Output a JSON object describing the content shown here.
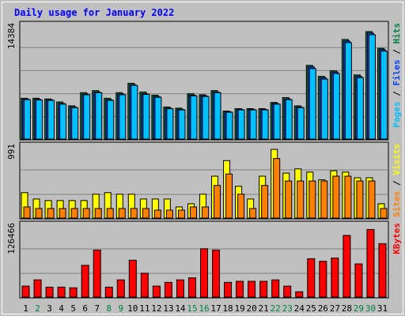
{
  "chart_data": {
    "type": "bar",
    "title": "Daily usage for January 2022",
    "categories": [
      "1",
      "2",
      "3",
      "4",
      "5",
      "6",
      "7",
      "8",
      "9",
      "10",
      "11",
      "12",
      "13",
      "14",
      "15",
      "16",
      "17",
      "18",
      "19",
      "20",
      "21",
      "22",
      "23",
      "24",
      "25",
      "26",
      "27",
      "28",
      "29",
      "30",
      "31"
    ],
    "weekend_days": [
      "2",
      "8",
      "9",
      "15",
      "16",
      "22",
      "23",
      "29",
      "30"
    ],
    "panels": [
      {
        "id": "hits-files-pages",
        "max_label": "14384",
        "ylim": [
          0,
          14384
        ],
        "grid": true,
        "series": [
          {
            "name": "Hits",
            "color": "#008040",
            "values": [
              5087,
              5087,
              5000,
              4626,
              4144,
              5782,
              6043,
              5087,
              5782,
              6955,
              5869,
              5478,
              3997,
              3853,
              5652,
              5522,
              6043,
              3491,
              3791,
              3791,
              3791,
              4563,
              5174,
              4144,
              9188,
              7824,
              8520,
              12418,
              8000,
              13403,
              11314
            ]
          },
          {
            "name": "Files",
            "color": "#0040ff",
            "values": [
              5000,
              4955,
              4913,
              4440,
              4000,
              5609,
              5869,
              4913,
              5609,
              6782,
              5652,
              5304,
              3853,
              3710,
              5478,
              5391,
              5869,
              3417,
              3710,
              3710,
              3710,
              4436,
              5000,
              4000,
              9000,
              7650,
              8347,
              12223,
              7824,
              13209,
              11138
            ]
          },
          {
            "name": "Pages",
            "color": "#00c0ff",
            "values": [
              4913,
              4869,
              4826,
              4355,
              3913,
              5522,
              5782,
              4826,
              5522,
              6695,
              5565,
              5217,
              3780,
              3637,
              5391,
              5304,
              5782,
              3344,
              3637,
              3637,
              3637,
              4355,
              4913,
              3913,
              8781,
              7476,
              8173,
              12029,
              7650,
              13014,
              10963
            ]
          }
        ]
      },
      {
        "id": "visits-sites",
        "max_label": "991",
        "ylim": [
          0,
          991
        ],
        "grid": true,
        "series": [
          {
            "name": "Visits",
            "color": "#ffff00",
            "values": [
              343,
              257,
              236,
              236,
              236,
              236,
              322,
              343,
              322,
              322,
              257,
              257,
              257,
              150,
              193,
              322,
              565,
              775,
              429,
              257,
              565,
              927,
              607,
              663,
              620,
              516,
              638,
              620,
              544,
              544,
              193
            ]
          },
          {
            "name": "Sites",
            "color": "#ff8000",
            "values": [
              150,
              129,
              129,
              129,
              129,
              129,
              129,
              129,
              129,
              129,
              129,
              107,
              107,
              107,
              150,
              150,
              440,
              594,
              322,
              129,
              440,
              803,
              500,
              500,
              500,
              500,
              565,
              565,
              500,
              500,
              129
            ]
          }
        ]
      },
      {
        "id": "kbytes",
        "max_label": "126466",
        "ylim": [
          0,
          126466
        ],
        "grid": true,
        "series": [
          {
            "name": "KBytes",
            "color": "#ff0000",
            "values": [
              18900,
              29640,
              17120,
              17120,
              16010,
              54650,
              80970,
              17120,
              29640,
              63510,
              41020,
              18900,
              25350,
              29640,
              33090,
              83190,
              80970,
              25350,
              27170,
              27170,
              27170,
              29640,
              18900,
              9240,
              66040,
              61580,
              67140,
              106160,
              57100,
              116320,
              92010
            ]
          }
        ]
      }
    ]
  },
  "colors": {
    "title": "#0000ff",
    "plot_bg": "#c0c0c0",
    "page_bg": "#ffffff",
    "gridline": "#808080",
    "weekday_label": "#000000",
    "weekend_label": "#008040",
    "legend_separator": "#000000"
  }
}
